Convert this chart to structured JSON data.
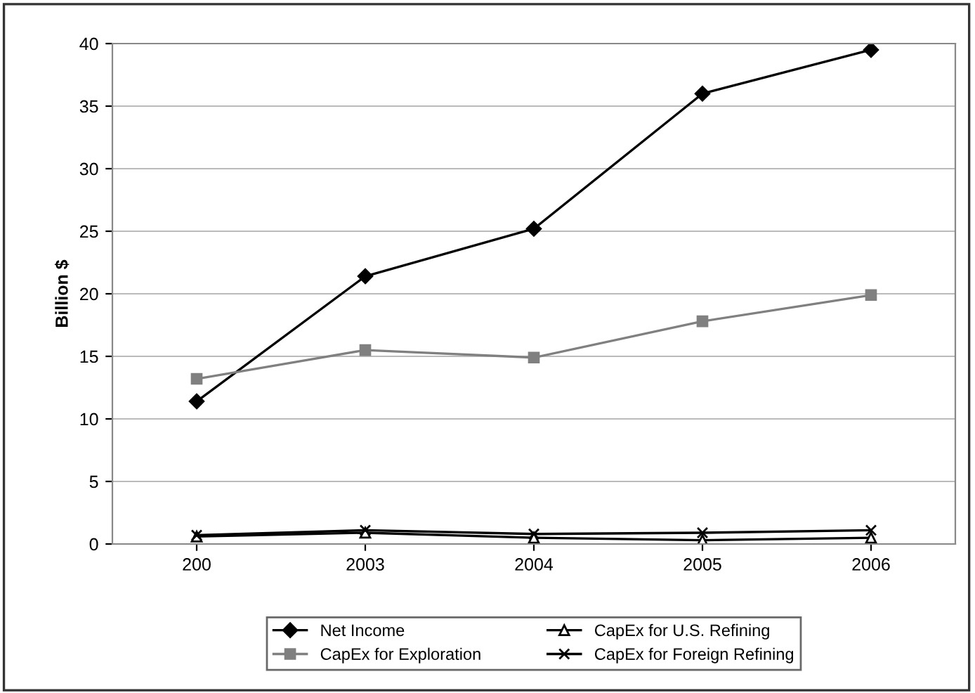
{
  "chart_data": {
    "type": "line",
    "ylabel": "Billion $",
    "categories": [
      "200",
      "2003",
      "2004",
      "2005",
      "2006"
    ],
    "series": [
      {
        "name": "Net Income",
        "color": "#000000",
        "marker": "diamond",
        "values": [
          11.4,
          21.4,
          25.2,
          36,
          39.5
        ]
      },
      {
        "name": "CapEx for Exploration",
        "color": "#808080",
        "marker": "square",
        "values": [
          13.2,
          15.5,
          14.9,
          17.8,
          19.9
        ]
      },
      {
        "name": "CapEx for U.S. Refining",
        "color": "#000000",
        "marker": "triangle",
        "values": [
          0.6,
          0.9,
          0.5,
          0.3,
          0.5
        ]
      },
      {
        "name": "CapEx for Foreign Refining",
        "color": "#000000",
        "marker": "cross",
        "values": [
          0.7,
          1.1,
          0.8,
          0.9,
          1.1
        ]
      }
    ],
    "ylim": [
      0,
      40
    ],
    "yticks": [
      0,
      5,
      10,
      15,
      20,
      25,
      30,
      35,
      40
    ],
    "grid": "y",
    "legend": "bottom",
    "line_style": "solid"
  }
}
